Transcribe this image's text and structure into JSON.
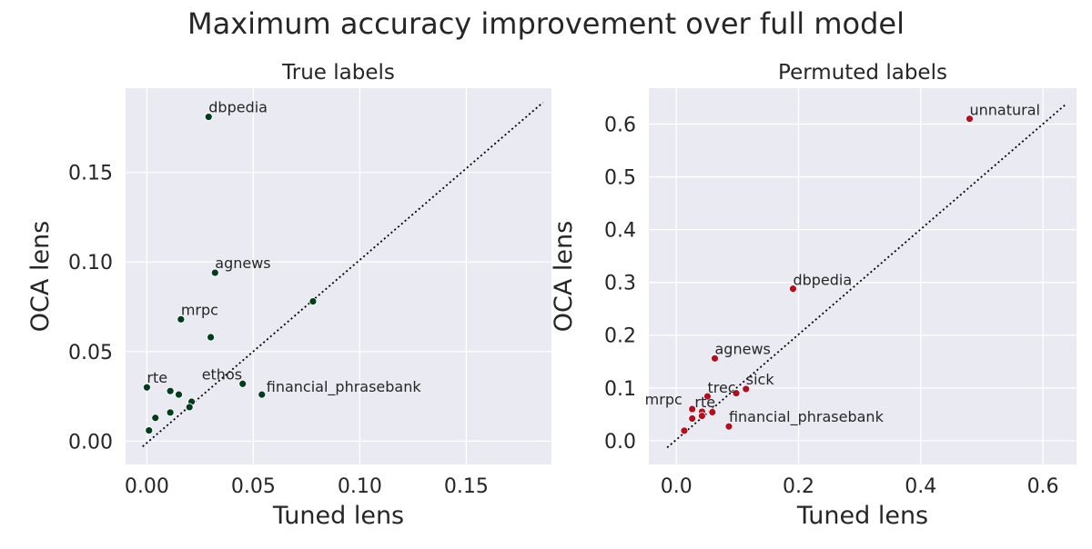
{
  "figure": {
    "title": "Maximum accuracy improvement over full model"
  },
  "chart_data": [
    {
      "type": "scatter",
      "title": "True labels",
      "xlabel": "Tuned lens",
      "ylabel": "OCA lens",
      "xlim": [
        -0.01,
        0.19
      ],
      "ylim": [
        -0.013,
        0.197
      ],
      "xticks": [
        0.0,
        0.05,
        0.1,
        0.15
      ],
      "xtick_labels": [
        "0.00",
        "0.05",
        "0.10",
        "0.15"
      ],
      "yticks": [
        0.0,
        0.05,
        0.1,
        0.15
      ],
      "ytick_labels": [
        "0.00",
        "0.05",
        "0.10",
        "0.15"
      ],
      "grid": true,
      "reference_line": {
        "style": "dotted",
        "from": [
          -0.002,
          -0.003
        ],
        "to": [
          0.186,
          0.189
        ]
      },
      "marker_color": "#003d1a",
      "points": [
        {
          "x": 0.029,
          "y": 0.181,
          "label": "dbpedia"
        },
        {
          "x": 0.032,
          "y": 0.094,
          "label": "agnews"
        },
        {
          "x": 0.078,
          "y": 0.078,
          "label": ""
        },
        {
          "x": 0.016,
          "y": 0.068,
          "label": "mrpc"
        },
        {
          "x": 0.03,
          "y": 0.058,
          "label": ""
        },
        {
          "x": 0.045,
          "y": 0.032,
          "label": "ethos"
        },
        {
          "x": 0.054,
          "y": 0.026,
          "label": "financial_phrasebank"
        },
        {
          "x": 0.0,
          "y": 0.03,
          "label": "rte"
        },
        {
          "x": 0.011,
          "y": 0.028,
          "label": ""
        },
        {
          "x": 0.015,
          "y": 0.026,
          "label": ""
        },
        {
          "x": 0.021,
          "y": 0.022,
          "label": ""
        },
        {
          "x": 0.02,
          "y": 0.019,
          "label": ""
        },
        {
          "x": 0.011,
          "y": 0.016,
          "label": ""
        },
        {
          "x": 0.004,
          "y": 0.013,
          "label": ""
        },
        {
          "x": 0.001,
          "y": 0.006,
          "label": ""
        }
      ]
    },
    {
      "type": "scatter",
      "title": "Permuted labels",
      "xlabel": "Tuned lens",
      "ylabel": "OCA lens",
      "xlim": [
        -0.045,
        0.655
      ],
      "ylim": [
        -0.045,
        0.668
      ],
      "xticks": [
        0.0,
        0.2,
        0.4,
        0.6
      ],
      "xtick_labels": [
        "0.0",
        "0.2",
        "0.4",
        "0.6"
      ],
      "yticks": [
        0.0,
        0.1,
        0.2,
        0.3,
        0.4,
        0.5,
        0.6
      ],
      "ytick_labels": [
        "0.0",
        "0.1",
        "0.2",
        "0.3",
        "0.4",
        "0.5",
        "0.6"
      ],
      "grid": true,
      "reference_line": {
        "style": "dotted",
        "from": [
          -0.015,
          -0.013
        ],
        "to": [
          0.638,
          0.638
        ]
      },
      "marker_color": "#b2101e",
      "points": [
        {
          "x": 0.48,
          "y": 0.61,
          "label": "unnatural"
        },
        {
          "x": 0.191,
          "y": 0.288,
          "label": "dbpedia"
        },
        {
          "x": 0.063,
          "y": 0.156,
          "label": "agnews"
        },
        {
          "x": 0.114,
          "y": 0.098,
          "label": "sick"
        },
        {
          "x": 0.098,
          "y": 0.09,
          "label": ""
        },
        {
          "x": 0.051,
          "y": 0.084,
          "label": "trec"
        },
        {
          "x": 0.026,
          "y": 0.06,
          "label": "mrpc"
        },
        {
          "x": 0.042,
          "y": 0.055,
          "label": "rte"
        },
        {
          "x": 0.059,
          "y": 0.054,
          "label": ""
        },
        {
          "x": 0.042,
          "y": 0.047,
          "label": ""
        },
        {
          "x": 0.026,
          "y": 0.042,
          "label": ""
        },
        {
          "x": 0.086,
          "y": 0.027,
          "label": "financial_phrasebank"
        },
        {
          "x": 0.013,
          "y": 0.019,
          "label": ""
        }
      ]
    }
  ],
  "colors": {
    "plot_background": "#eaeaf2",
    "grid": "#ffffff",
    "text": "#262626"
  }
}
